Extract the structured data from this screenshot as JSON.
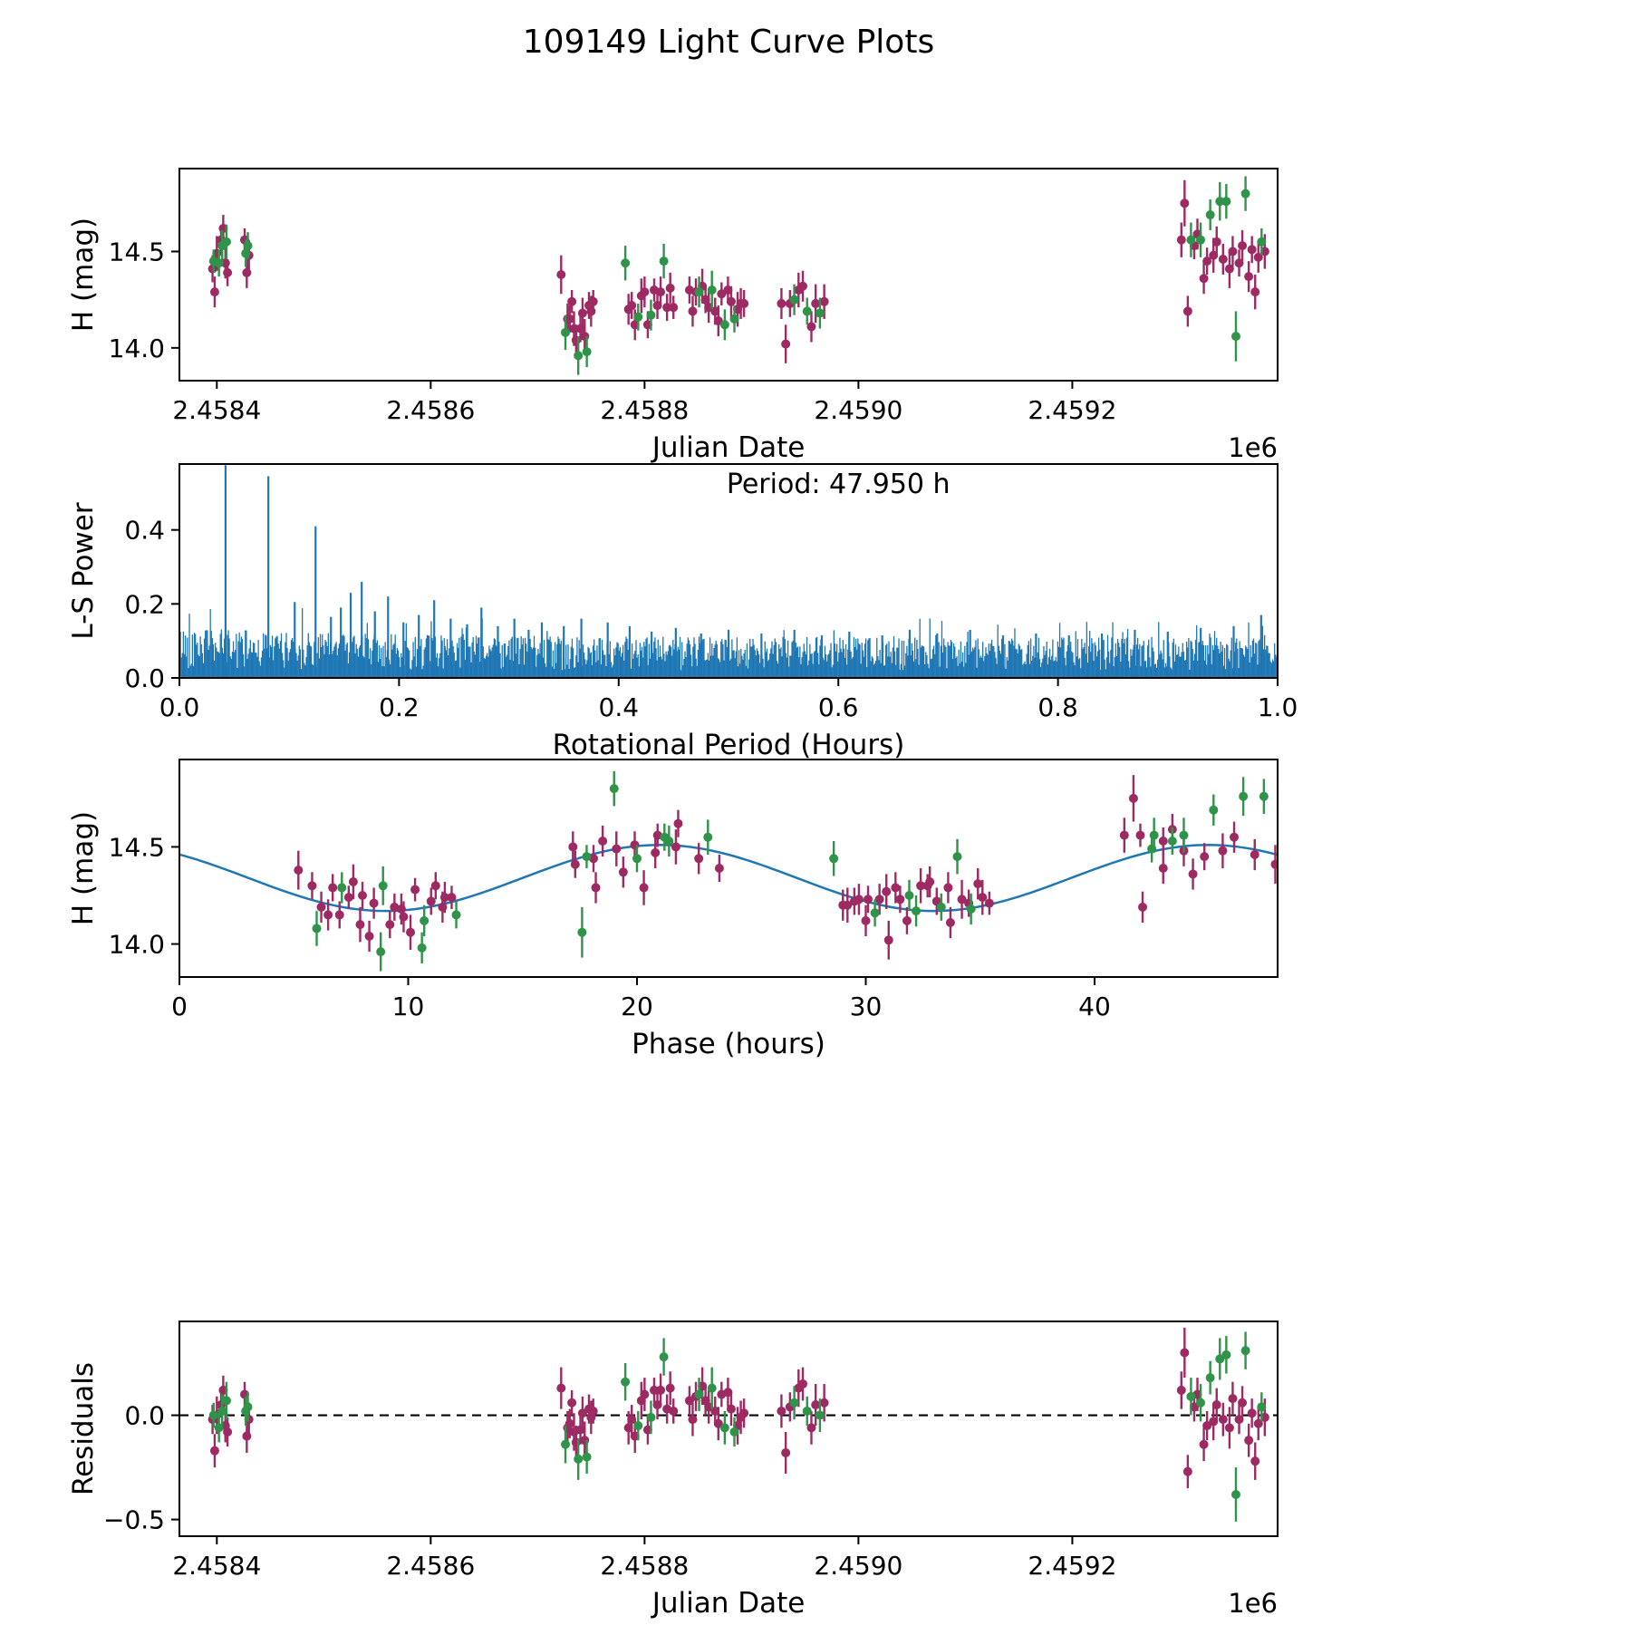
{
  "figure_title": "109149 Light Curve Plots",
  "colors": {
    "maroon": "#9e2a63",
    "green": "#2f9449",
    "blue": "#1f77b4",
    "axes": "#000000"
  },
  "observations": {
    "fields": [
      "julian_date",
      "phase_hours",
      "h_mag",
      "h_err",
      "residual"
    ],
    "series": [
      {
        "name": "dataset-1",
        "color": "#9e2a63",
        "points": [
          [
            2458396,
            17.3,
            14.41,
            0.07,
            -0.02
          ],
          [
            2458398,
            18.2,
            14.29,
            0.08,
            -0.17
          ],
          [
            2458400,
            19.1,
            14.49,
            0.09,
            0.0
          ],
          [
            2458404,
            20.9,
            14.56,
            0.06,
            0.05
          ],
          [
            2458406,
            21.8,
            14.62,
            0.07,
            0.12
          ],
          [
            2458408,
            22.7,
            14.44,
            0.08,
            -0.05
          ],
          [
            2458410,
            23.6,
            14.39,
            0.07,
            -0.08
          ],
          [
            2458426,
            42.0,
            14.56,
            0.06,
            0.1
          ],
          [
            2458428,
            43.0,
            14.39,
            0.08,
            -0.1
          ],
          [
            2458430,
            43.9,
            14.48,
            0.08,
            -0.02
          ],
          [
            2458722,
            5.2,
            14.38,
            0.1,
            0.13
          ],
          [
            2458728,
            6.5,
            14.15,
            0.08,
            -0.06
          ],
          [
            2458730,
            7.0,
            14.15,
            0.07,
            -0.04
          ],
          [
            2458732,
            7.4,
            14.24,
            0.06,
            0.06
          ],
          [
            2458734,
            7.9,
            14.1,
            0.09,
            -0.08
          ],
          [
            2458736,
            8.3,
            14.04,
            0.08,
            -0.13
          ],
          [
            2458740,
            9.2,
            14.1,
            0.07,
            -0.07
          ],
          [
            2458742,
            9.7,
            14.18,
            0.08,
            0.01
          ],
          [
            2458744,
            10.1,
            14.06,
            0.09,
            -0.12
          ],
          [
            2458748,
            11.0,
            14.22,
            0.07,
            0.03
          ],
          [
            2458750,
            11.5,
            14.19,
            0.08,
            -0.01
          ],
          [
            2458752,
            11.9,
            14.24,
            0.06,
            0.02
          ],
          [
            2458785,
            29.0,
            14.2,
            0.08,
            -0.06
          ],
          [
            2458788,
            29.5,
            14.22,
            0.07,
            -0.02
          ],
          [
            2458791,
            30.0,
            14.12,
            0.08,
            -0.1
          ],
          [
            2458797,
            30.9,
            14.27,
            0.09,
            0.07
          ],
          [
            2458800,
            31.3,
            14.29,
            0.08,
            0.1
          ],
          [
            2458803,
            31.8,
            14.12,
            0.07,
            -0.07
          ],
          [
            2458809,
            32.7,
            14.3,
            0.06,
            0.12
          ],
          [
            2458812,
            33.1,
            14.22,
            0.07,
            0.05
          ],
          [
            2458815,
            33.6,
            14.29,
            0.08,
            0.12
          ],
          [
            2458821,
            34.5,
            14.21,
            0.07,
            0.03
          ],
          [
            2458824,
            34.9,
            14.31,
            0.08,
            0.13
          ],
          [
            2458827,
            35.4,
            14.21,
            0.06,
            0.02
          ],
          [
            2458842,
            5.8,
            14.3,
            0.07,
            0.07
          ],
          [
            2458845,
            6.2,
            14.19,
            0.08,
            -0.02
          ],
          [
            2458848,
            6.7,
            14.29,
            0.07,
            0.09
          ],
          [
            2458854,
            7.6,
            14.32,
            0.09,
            0.14
          ],
          [
            2458857,
            8.0,
            14.25,
            0.07,
            0.07
          ],
          [
            2458860,
            8.5,
            14.21,
            0.08,
            0.04
          ],
          [
            2458866,
            9.4,
            14.19,
            0.07,
            0.02
          ],
          [
            2458869,
            9.8,
            14.14,
            0.08,
            -0.04
          ],
          [
            2458872,
            10.3,
            14.28,
            0.06,
            0.1
          ],
          [
            2458878,
            11.2,
            14.3,
            0.07,
            0.11
          ],
          [
            2458881,
            11.6,
            14.24,
            0.08,
            0.03
          ],
          [
            2458887,
            29.2,
            14.2,
            0.09,
            -0.05
          ],
          [
            2458890,
            29.7,
            14.23,
            0.08,
            -0.01
          ],
          [
            2458893,
            30.1,
            14.23,
            0.07,
            0.01
          ],
          [
            2458928,
            30.6,
            14.23,
            0.08,
            0.02
          ],
          [
            2458932,
            31.0,
            14.02,
            0.1,
            -0.18
          ],
          [
            2458936,
            31.5,
            14.23,
            0.07,
            0.04
          ],
          [
            2458944,
            32.4,
            14.3,
            0.09,
            0.13
          ],
          [
            2458948,
            32.8,
            14.32,
            0.08,
            0.15
          ],
          [
            2458956,
            33.7,
            14.11,
            0.08,
            -0.06
          ],
          [
            2458960,
            34.2,
            14.23,
            0.1,
            0.05
          ],
          [
            2458968,
            35.1,
            14.24,
            0.09,
            0.06
          ],
          [
            2459302,
            41.3,
            14.56,
            0.09,
            0.12
          ],
          [
            2459305,
            41.7,
            14.75,
            0.12,
            0.3
          ],
          [
            2459308,
            42.1,
            14.19,
            0.08,
            -0.27
          ],
          [
            2459314,
            43.0,
            14.53,
            0.07,
            0.04
          ],
          [
            2459317,
            43.4,
            14.59,
            0.08,
            0.1
          ],
          [
            2459323,
            44.3,
            14.36,
            0.08,
            -0.14
          ],
          [
            2459326,
            44.8,
            14.45,
            0.07,
            -0.05
          ],
          [
            2459332,
            45.6,
            14.48,
            0.09,
            -0.03
          ],
          [
            2459335,
            46.1,
            14.55,
            0.08,
            0.05
          ],
          [
            2459341,
            47.0,
            14.46,
            0.08,
            -0.02
          ],
          [
            2459347,
            47.9,
            14.41,
            0.1,
            -0.06
          ],
          [
            2459350,
            17.2,
            14.5,
            0.08,
            0.08
          ],
          [
            2459356,
            18.1,
            14.44,
            0.07,
            -0.02
          ],
          [
            2459359,
            18.5,
            14.53,
            0.08,
            0.06
          ],
          [
            2459365,
            19.4,
            14.37,
            0.08,
            -0.12
          ],
          [
            2459368,
            19.9,
            14.51,
            0.07,
            0.01
          ],
          [
            2459371,
            20.3,
            14.29,
            0.09,
            -0.22
          ],
          [
            2459374,
            20.8,
            14.47,
            0.08,
            -0.04
          ],
          [
            2459380,
            21.7,
            14.5,
            0.09,
            -0.01
          ]
        ]
      },
      {
        "name": "dataset-2",
        "color": "#2f9449",
        "points": [
          [
            2458397,
            17.8,
            14.45,
            0.06,
            0.0
          ],
          [
            2458402,
            20.0,
            14.44,
            0.07,
            -0.06
          ],
          [
            2458405,
            21.4,
            14.53,
            0.08,
            0.02
          ],
          [
            2458409,
            23.1,
            14.55,
            0.09,
            0.07
          ],
          [
            2458427,
            42.5,
            14.49,
            0.07,
            0.02
          ],
          [
            2458429,
            43.4,
            14.53,
            0.07,
            0.04
          ],
          [
            2458726,
            6.0,
            14.08,
            0.09,
            -0.14
          ],
          [
            2458738,
            8.8,
            13.96,
            0.1,
            -0.21
          ],
          [
            2458746,
            10.6,
            13.98,
            0.08,
            -0.2
          ],
          [
            2458782,
            28.6,
            14.44,
            0.09,
            0.16
          ],
          [
            2458794,
            30.4,
            14.16,
            0.07,
            -0.05
          ],
          [
            2458806,
            32.2,
            14.17,
            0.08,
            -0.01
          ],
          [
            2458818,
            34.0,
            14.45,
            0.09,
            0.28
          ],
          [
            2458851,
            7.1,
            14.29,
            0.08,
            0.1
          ],
          [
            2458863,
            8.9,
            14.3,
            0.1,
            0.13
          ],
          [
            2458875,
            10.7,
            14.12,
            0.08,
            -0.06
          ],
          [
            2458884,
            12.1,
            14.15,
            0.07,
            -0.08
          ],
          [
            2458940,
            31.9,
            14.25,
            0.08,
            0.06
          ],
          [
            2458952,
            33.3,
            14.19,
            0.07,
            0.02
          ],
          [
            2458964,
            34.6,
            14.18,
            0.08,
            0.0
          ],
          [
            2459311,
            42.6,
            14.56,
            0.09,
            0.09
          ],
          [
            2459320,
            43.9,
            14.56,
            0.09,
            0.06
          ],
          [
            2459329,
            45.2,
            14.69,
            0.08,
            0.18
          ],
          [
            2459338,
            46.5,
            14.76,
            0.1,
            0.27
          ],
          [
            2459344,
            47.4,
            14.76,
            0.09,
            0.29
          ],
          [
            2459353,
            17.6,
            14.06,
            0.13,
            -0.38
          ],
          [
            2459362,
            19.0,
            14.8,
            0.09,
            0.31
          ],
          [
            2459377,
            21.2,
            14.55,
            0.07,
            0.04
          ]
        ]
      }
    ]
  },
  "chart_data": [
    {
      "id": "light-curve",
      "type": "scatter",
      "xlabel": "Julian Date",
      "ylabel": "H (mag)",
      "x_offset_label": "1e6",
      "xlim": [
        2458365,
        2459392
      ],
      "ylim": [
        13.83,
        14.93
      ],
      "xticks": [
        2458400,
        2458600,
        2458800,
        2459000,
        2459200
      ],
      "xtick_labels": [
        "2.4584",
        "2.4586",
        "2.4588",
        "2.4590",
        "2.4592"
      ],
      "yticks": [
        14.0,
        14.5
      ],
      "ytick_labels": [
        "14.0",
        "14.5"
      ],
      "uses": {
        "x": "julian_date",
        "y": "h_mag",
        "err": "h_err"
      }
    },
    {
      "id": "periodogram",
      "type": "line",
      "xlabel": "Rotational Period (Hours)",
      "ylabel": "L-S Power",
      "xlim": [
        0.0,
        1.0
      ],
      "ylim": [
        0.0,
        0.578
      ],
      "xticks": [
        0.0,
        0.2,
        0.4,
        0.6,
        0.8,
        1.0
      ],
      "xtick_labels": [
        "0.0",
        "0.2",
        "0.4",
        "0.6",
        "0.8",
        "1.0"
      ],
      "yticks": [
        0.0,
        0.2,
        0.4
      ],
      "ytick_labels": [
        "0.0",
        "0.2",
        "0.4"
      ],
      "color": "#1f77b4",
      "annotation": "Period: 47.950 h",
      "best_period_hours": 47.95,
      "peaks": [
        [
          0.042,
          0.575
        ],
        [
          0.081,
          0.545
        ],
        [
          0.105,
          0.205
        ],
        [
          0.124,
          0.41
        ],
        [
          0.138,
          0.165
        ],
        [
          0.147,
          0.19
        ],
        [
          0.156,
          0.23
        ],
        [
          0.166,
          0.26
        ],
        [
          0.178,
          0.18
        ],
        [
          0.19,
          0.22
        ],
        [
          0.204,
          0.15
        ],
        [
          0.218,
          0.17
        ],
        [
          0.232,
          0.21
        ],
        [
          0.247,
          0.16
        ],
        [
          0.262,
          0.145
        ],
        [
          0.275,
          0.19
        ],
        [
          0.29,
          0.14
        ],
        [
          0.305,
          0.16
        ],
        [
          0.318,
          0.13
        ],
        [
          0.33,
          0.15
        ],
        [
          0.35,
          0.14
        ],
        [
          0.366,
          0.16
        ],
        [
          0.39,
          0.15
        ],
        [
          0.41,
          0.14
        ],
        [
          0.43,
          0.125
        ],
        [
          0.452,
          0.135
        ],
        [
          0.475,
          0.12
        ],
        [
          0.5,
          0.13
        ],
        [
          0.53,
          0.12
        ],
        [
          0.56,
          0.13
        ],
        [
          0.585,
          0.115
        ],
        [
          0.61,
          0.125
        ],
        [
          0.64,
          0.115
        ],
        [
          0.665,
          0.13
        ],
        [
          0.69,
          0.12
        ],
        [
          0.72,
          0.13
        ],
        [
          0.75,
          0.115
        ],
        [
          0.78,
          0.12
        ],
        [
          0.81,
          0.115
        ],
        [
          0.84,
          0.12
        ],
        [
          0.87,
          0.13
        ],
        [
          0.9,
          0.125
        ],
        [
          0.93,
          0.135
        ],
        [
          0.96,
          0.14
        ],
        [
          0.985,
          0.17
        ]
      ],
      "noise": {
        "count": 1100,
        "seed": 42,
        "base": 0.02,
        "spread": 0.09,
        "power": 0.75,
        "spike_chance": 0.08,
        "spike_max": 0.07,
        "envelope_boost": 0.25,
        "envelope_decay": 6
      }
    },
    {
      "id": "phase-curve",
      "type": "scatter",
      "xlabel": "Phase (hours)",
      "ylabel": "H (mag)",
      "xlim": [
        0,
        48
      ],
      "ylim": [
        13.83,
        14.95
      ],
      "xticks": [
        0,
        10,
        20,
        30,
        40
      ],
      "xtick_labels": [
        "0",
        "10",
        "20",
        "30",
        "40"
      ],
      "yticks": [
        14.0,
        14.5
      ],
      "ytick_labels": [
        "14.0",
        "14.5"
      ],
      "uses": {
        "x": "phase_hours",
        "y": "h_mag",
        "err": "h_err"
      },
      "fit": {
        "type": "sinusoid",
        "mean": 14.34,
        "amplitude": 0.17,
        "period_hours": 23.975,
        "phase_zero_hours": 15.0,
        "color": "#1f77b4"
      }
    },
    {
      "id": "residuals",
      "type": "scatter",
      "xlabel": "Julian Date",
      "ylabel": "Residuals",
      "x_offset_label": "1e6",
      "xlim": [
        2458365,
        2459392
      ],
      "ylim": [
        -0.58,
        0.45
      ],
      "xticks": [
        2458400,
        2458600,
        2458800,
        2459000,
        2459200
      ],
      "xtick_labels": [
        "2.4584",
        "2.4586",
        "2.4588",
        "2.4590",
        "2.4592"
      ],
      "yticks": [
        -0.5,
        0.0
      ],
      "ytick_labels": [
        "−0.5",
        "0.0"
      ],
      "uses": {
        "x": "julian_date",
        "y": "residual",
        "err": "h_err"
      },
      "zero_line": {
        "value": 0.0,
        "style": "dashed",
        "color": "#000000"
      }
    }
  ]
}
